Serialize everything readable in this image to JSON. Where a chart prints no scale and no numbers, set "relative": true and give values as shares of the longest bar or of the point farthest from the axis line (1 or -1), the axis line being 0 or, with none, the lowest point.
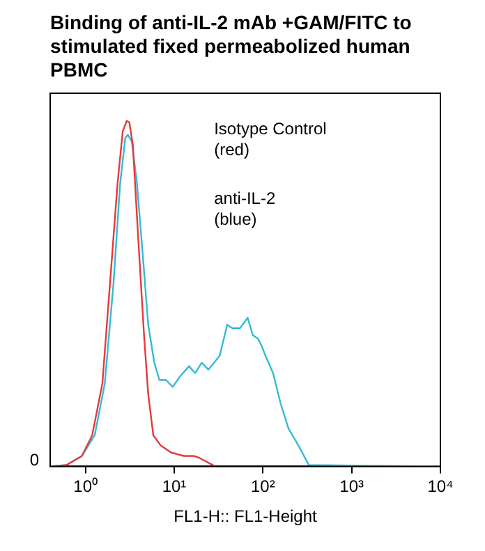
{
  "chart_data": {
    "type": "line",
    "title": "Binding of anti-IL-2 mAb +GAM/FITC to stimulated fixed permeabolized human PBMC",
    "xlabel": "FL1-H:: FL1-Height",
    "relative": true,
    "log": "x",
    "xlim": [
      0.4,
      10000
    ],
    "xticks": [
      {
        "value": 1,
        "label": "10⁰"
      },
      {
        "value": 10,
        "label": "10¹"
      },
      {
        "value": 100,
        "label": "10²"
      },
      {
        "value": 1000,
        "label": "10³"
      },
      {
        "value": 10000,
        "label": "10⁴"
      }
    ],
    "grid": false,
    "legend": false,
    "marker": "none",
    "line_style": "solid",
    "annotations": [
      "0",
      "Isotype Control\n(red)",
      "anti-IL-2\n(blue)"
    ],
    "series": [
      {
        "color": "#e8383d",
        "x": [
          0.41,
          0.61,
          0.91,
          1.19,
          1.55,
          1.89,
          2.3,
          2.63,
          2.92,
          3.12,
          3.42,
          3.91,
          4.57,
          5.09,
          5.81,
          7.08,
          9.24,
          12.9,
          16.7,
          19.1,
          28.5
        ],
        "values": [
          0,
          0.004,
          0.03,
          0.09,
          0.24,
          0.53,
          0.82,
          0.97,
          1,
          0.996,
          0.93,
          0.67,
          0.38,
          0.21,
          0.09,
          0.06,
          0.04,
          0.03,
          0.03,
          0.025,
          0.001
        ]
      },
      {
        "color": "#33bbd6",
        "x": [
          0.41,
          0.61,
          0.91,
          1.27,
          1.65,
          2.07,
          2.46,
          2.81,
          3.0,
          3.33,
          3.8,
          4.46,
          5.09,
          5.97,
          6.81,
          8.09,
          9.61,
          11.6,
          14.7,
          17.2,
          20.4,
          24.3,
          32.5,
          39.6,
          45.2,
          55.1,
          67.3,
          76.8,
          87.7,
          96.1,
          107,
          130,
          159,
          194,
          252,
          329,
          10000
        ],
        "values": [
          0,
          0.004,
          0.03,
          0.09,
          0.24,
          0.53,
          0.82,
          0.95,
          0.96,
          0.94,
          0.82,
          0.6,
          0.41,
          0.3,
          0.25,
          0.25,
          0.23,
          0.26,
          0.29,
          0.27,
          0.3,
          0.28,
          0.32,
          0.41,
          0.4,
          0.4,
          0.43,
          0.38,
          0.37,
          0.35,
          0.32,
          0.27,
          0.18,
          0.11,
          0.06,
          0.004,
          0
        ]
      }
    ]
  }
}
